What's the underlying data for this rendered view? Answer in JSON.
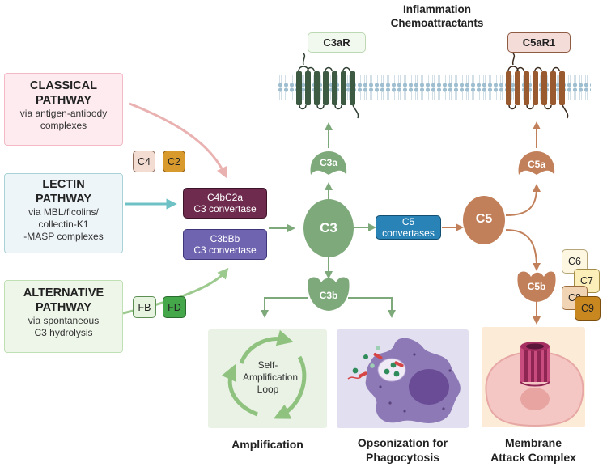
{
  "header": {
    "line1": "Inflammation",
    "line2": "Chemoattractants"
  },
  "receptors": {
    "c3ar": "C3aR",
    "c5ar1": "C5aR1"
  },
  "pathways": {
    "classical": {
      "title1": "CLASSICAL",
      "title2": "PATHWAY",
      "sub1": "via antigen-antibody",
      "sub2": "complexes"
    },
    "lectin": {
      "title1": "LECTIN",
      "title2": "PATHWAY",
      "sub1": "via MBL/ficolins/",
      "sub2": "collectin-K1",
      "sub3": "-MASP complexes"
    },
    "alternative": {
      "title1": "ALTERNATIVE",
      "title2": "PATHWAY",
      "sub1": "via spontaneous",
      "sub2": "C3 hydrolysis"
    }
  },
  "factors": {
    "c4": "C4",
    "c2": "C2",
    "fb": "FB",
    "fd": "FD"
  },
  "convertases": {
    "classical_lectin": {
      "line1": "C4bC2a",
      "line2": "C3 convertase"
    },
    "alternative": {
      "line1": "C3bBb",
      "line2": "C3 convertase"
    },
    "c5": "C5 convertases"
  },
  "molecules": {
    "c3": "C3",
    "c3a": "C3a",
    "c3b": "C3b",
    "c5": "C5",
    "c5a": "C5a",
    "c5b": "C5b"
  },
  "mac_components": [
    "C6",
    "C7",
    "C8",
    "C9"
  ],
  "loop": {
    "line1": "Self-",
    "line2": "Amplification",
    "line3": "Loop"
  },
  "outcomes": {
    "amplification": "Amplification",
    "opsonization1": "Opsonization for",
    "opsonization2": "Phagocytosis",
    "mac1": "Membrane",
    "mac2": "Attack Complex"
  },
  "colors": {
    "green": "#7ea97a",
    "copper": "#c2805a",
    "classical_bg": "#fdebef",
    "lectin_bg": "#eef5f9",
    "alternative_bg": "#eef6e9",
    "c4bc2a": "#6e2b4e",
    "c3bbb": "#6f64b0",
    "c5conv": "#2a83b6"
  }
}
